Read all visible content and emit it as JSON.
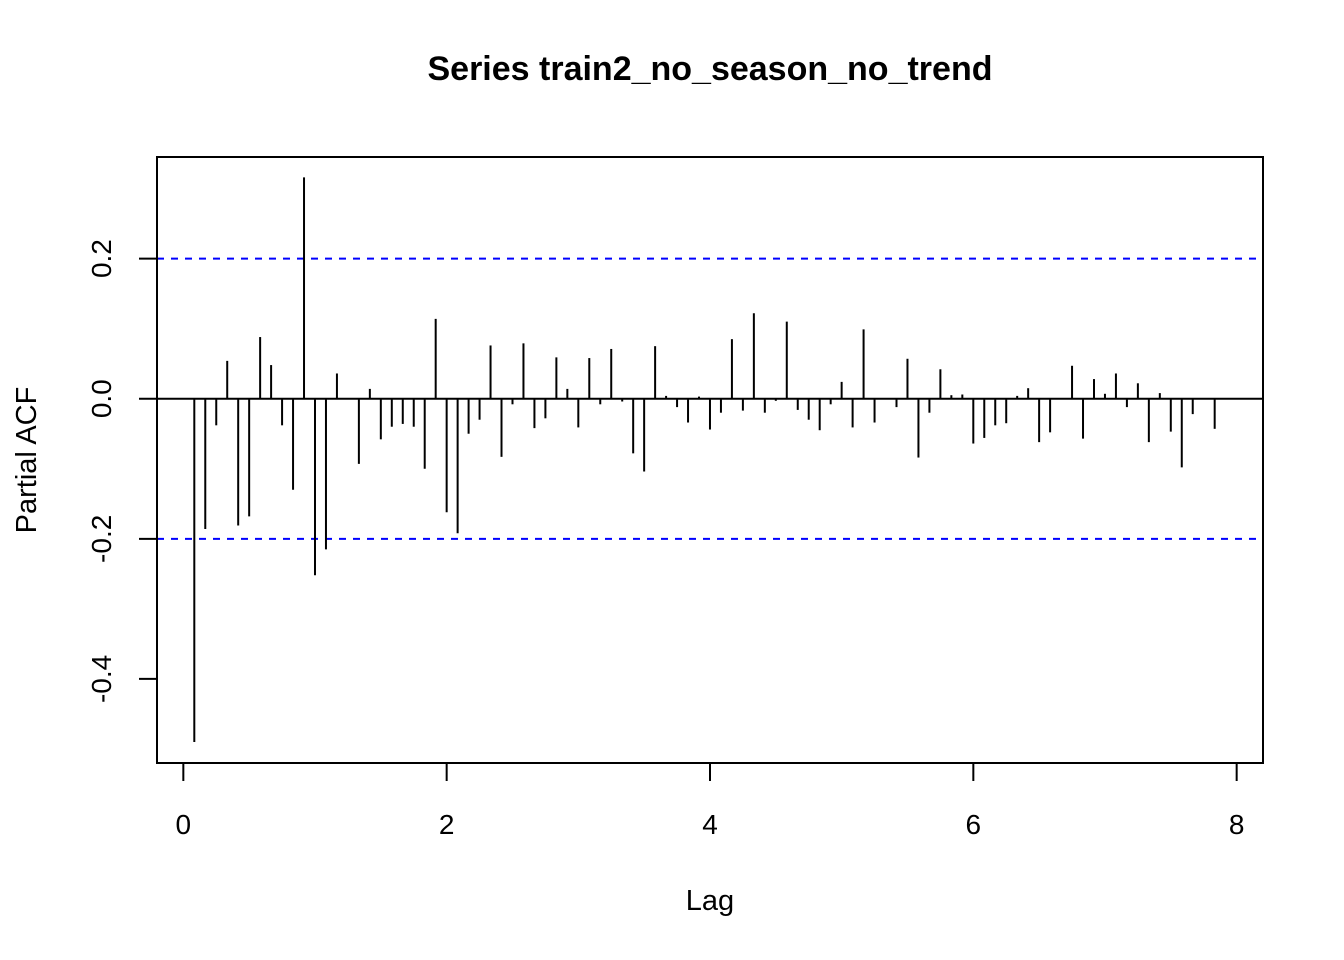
{
  "chart_data": {
    "type": "bar",
    "title": "Series  train2_no_season_no_trend",
    "xlabel": "Lag",
    "ylabel": "Partial ACF",
    "xlim": [
      -0.2,
      8.2
    ],
    "ylim": [
      -0.52,
      0.345
    ],
    "x_ticks": [
      0,
      2,
      4,
      6,
      8
    ],
    "x_tick_labels": [
      "0",
      "2",
      "4",
      "6",
      "8"
    ],
    "y_ticks": [
      -0.4,
      -0.2,
      0.0,
      0.2
    ],
    "y_tick_labels": [
      "-0.4",
      "-0.2",
      "0.0",
      "0.2"
    ],
    "confidence_bounds": [
      0.2,
      -0.2
    ],
    "bound_color": "#0000ff",
    "bar_color": "#000000",
    "grid": false,
    "lag_step": 0.08333,
    "values": [
      -0.49,
      -0.186,
      -0.038,
      0.054,
      -0.181,
      -0.168,
      0.088,
      0.048,
      -0.038,
      -0.13,
      0.316,
      -0.252,
      -0.215,
      0.036,
      0.0,
      -0.093,
      0.014,
      -0.058,
      -0.04,
      -0.036,
      -0.04,
      -0.1,
      0.114,
      -0.162,
      -0.192,
      -0.05,
      -0.03,
      0.076,
      -0.083,
      -0.008,
      0.079,
      -0.042,
      -0.028,
      0.059,
      0.014,
      -0.041,
      0.058,
      -0.008,
      0.071,
      -0.004,
      -0.078,
      -0.104,
      0.075,
      0.004,
      -0.012,
      -0.034,
      0.003,
      -0.044,
      -0.02,
      0.085,
      -0.017,
      0.122,
      -0.02,
      -0.003,
      0.11,
      -0.016,
      -0.03,
      -0.045,
      -0.008,
      0.024,
      -0.041,
      0.099,
      -0.034,
      0.0,
      -0.012,
      0.057,
      -0.084,
      -0.02,
      0.042,
      0.005,
      0.006,
      -0.064,
      -0.056,
      -0.038,
      -0.035,
      0.004,
      0.015,
      -0.062,
      -0.048,
      0.0,
      0.047,
      -0.057,
      0.028,
      0.007,
      0.036,
      -0.012,
      0.022,
      -0.062,
      0.008,
      -0.047,
      -0.098,
      -0.022,
      0.0,
      -0.043
    ]
  }
}
